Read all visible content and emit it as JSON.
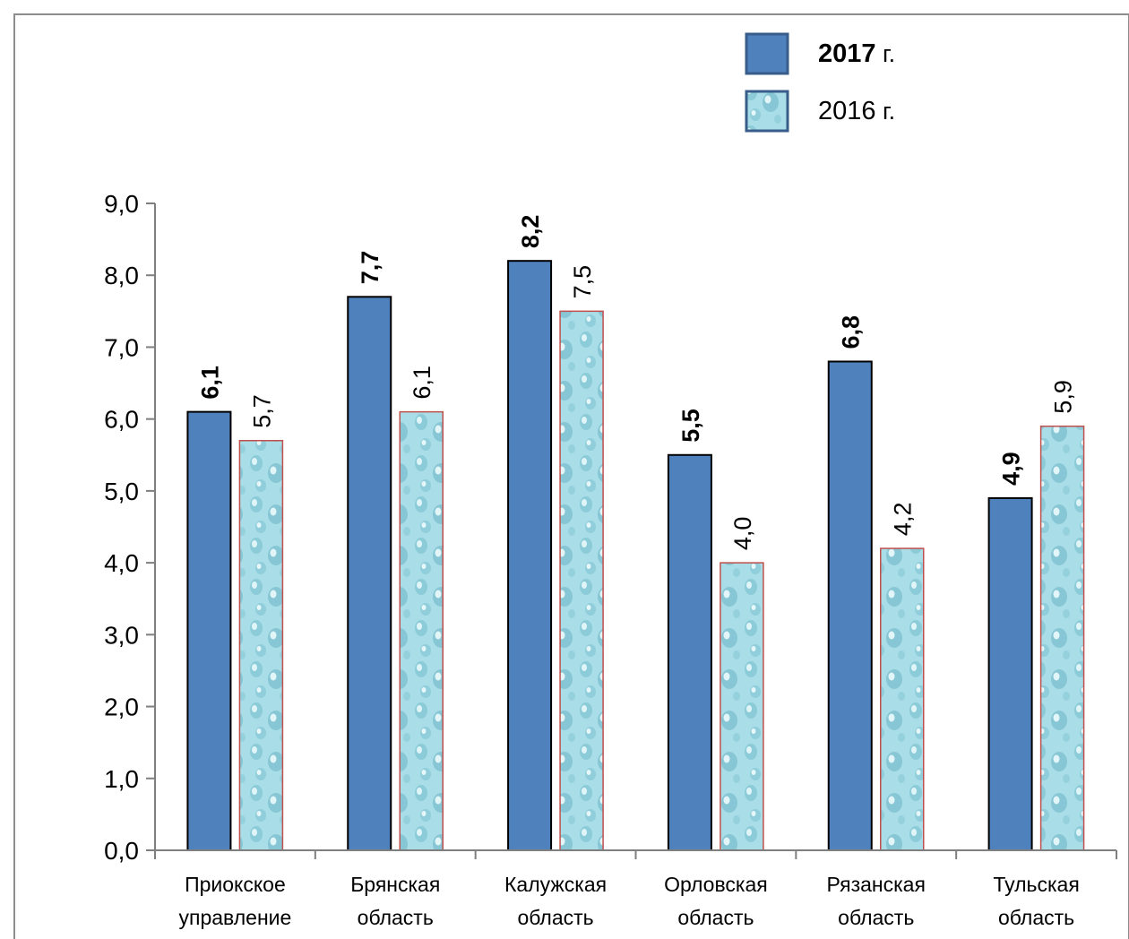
{
  "chart_data": {
    "type": "bar",
    "categories": [
      [
        "Приокское",
        "управление"
      ],
      [
        "Брянская",
        "область"
      ],
      [
        "Калужская",
        "область"
      ],
      [
        "Орловская",
        "область"
      ],
      [
        "Рязанская",
        "область"
      ],
      [
        "Тульская",
        "область"
      ]
    ],
    "series": [
      {
        "name": "2017 г.",
        "name_main": "2017",
        "name_suffix": " г.",
        "values": [
          6.1,
          7.7,
          8.2,
          5.5,
          6.8,
          4.9
        ],
        "value_labels": [
          "6,1",
          "7,7",
          "8,2",
          "5,5",
          "6,8",
          "4,9"
        ],
        "color": "#4f81bd",
        "label_bold": true
      },
      {
        "name": "2016 г.",
        "name_main": "2016",
        "name_suffix": " г.",
        "values": [
          5.7,
          6.1,
          7.5,
          4.0,
          4.2,
          5.9
        ],
        "value_labels": [
          "5,7",
          "6,1",
          "7,5",
          "4,0",
          "4,2",
          "5,9"
        ],
        "color": "#a8dce6",
        "pattern": "water-droplets",
        "label_bold": false
      }
    ],
    "ylim": [
      0,
      9
    ],
    "yticks": [
      "0,0",
      "1,0",
      "2,0",
      "3,0",
      "4,0",
      "5,0",
      "6,0",
      "7,0",
      "8,0",
      "9,0"
    ],
    "title": "",
    "xlabel": "",
    "ylabel": "",
    "grid": false,
    "legend": "top-right",
    "data_label_orientation": "vertical"
  }
}
